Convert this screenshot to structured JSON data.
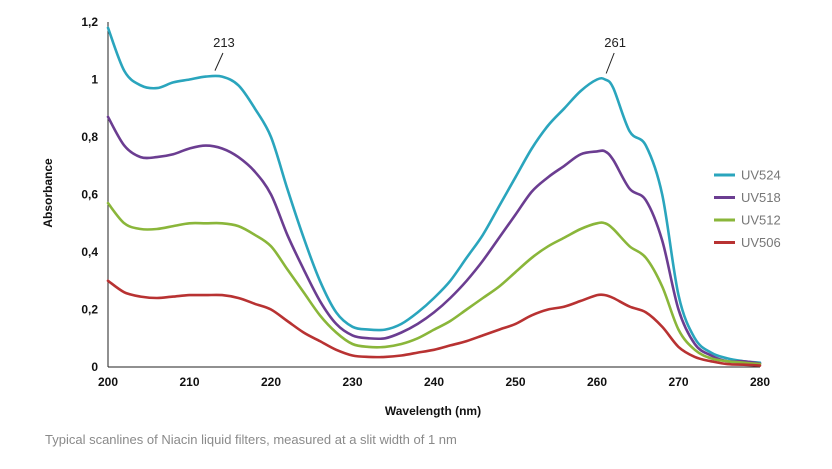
{
  "chart_data": {
    "type": "line",
    "xlabel": "Wavelength (nm)",
    "ylabel": "Absorbance",
    "xlim": [
      200,
      280
    ],
    "ylim": [
      0,
      1.2
    ],
    "x_ticks": [
      "200",
      "210",
      "220",
      "230",
      "240",
      "250",
      "260",
      "270",
      "280"
    ],
    "y_ticks": [
      "0",
      "0,2",
      "0,4",
      "0,6",
      "0,8",
      "1",
      "1,2"
    ],
    "grid": false,
    "legend_position": "right",
    "x": [
      200,
      202,
      204,
      206,
      208,
      210,
      212,
      214,
      216,
      218,
      220,
      222,
      224,
      226,
      228,
      230,
      232,
      234,
      236,
      238,
      240,
      242,
      244,
      246,
      248,
      250,
      252,
      254,
      256,
      258,
      260,
      261,
      262,
      264,
      266,
      268,
      270,
      272,
      274,
      276,
      278,
      280
    ],
    "series": [
      {
        "name": "UV524",
        "color": "#2aa5bd",
        "values": [
          1.18,
          1.03,
          0.98,
          0.97,
          0.99,
          1.0,
          1.01,
          1.01,
          0.98,
          0.9,
          0.8,
          0.62,
          0.45,
          0.3,
          0.19,
          0.14,
          0.13,
          0.13,
          0.15,
          0.19,
          0.24,
          0.3,
          0.38,
          0.46,
          0.56,
          0.66,
          0.76,
          0.84,
          0.9,
          0.96,
          1.0,
          1.0,
          0.97,
          0.82,
          0.77,
          0.6,
          0.25,
          0.1,
          0.05,
          0.03,
          0.02,
          0.015
        ]
      },
      {
        "name": "UV518",
        "color": "#6b3d91",
        "values": [
          0.87,
          0.77,
          0.73,
          0.73,
          0.74,
          0.76,
          0.77,
          0.76,
          0.73,
          0.68,
          0.6,
          0.46,
          0.34,
          0.23,
          0.15,
          0.11,
          0.1,
          0.1,
          0.12,
          0.15,
          0.19,
          0.24,
          0.3,
          0.37,
          0.45,
          0.53,
          0.61,
          0.66,
          0.7,
          0.74,
          0.75,
          0.75,
          0.72,
          0.62,
          0.58,
          0.44,
          0.2,
          0.08,
          0.04,
          0.02,
          0.02,
          0.012
        ]
      },
      {
        "name": "UV512",
        "color": "#8ab63a",
        "values": [
          0.57,
          0.5,
          0.48,
          0.48,
          0.49,
          0.5,
          0.5,
          0.5,
          0.49,
          0.46,
          0.42,
          0.34,
          0.26,
          0.18,
          0.12,
          0.08,
          0.07,
          0.07,
          0.08,
          0.1,
          0.13,
          0.16,
          0.2,
          0.24,
          0.28,
          0.33,
          0.38,
          0.42,
          0.45,
          0.48,
          0.5,
          0.5,
          0.48,
          0.42,
          0.38,
          0.28,
          0.13,
          0.06,
          0.03,
          0.02,
          0.015,
          0.01
        ]
      },
      {
        "name": "UV506",
        "color": "#b83232",
        "values": [
          0.3,
          0.26,
          0.245,
          0.24,
          0.245,
          0.25,
          0.25,
          0.25,
          0.24,
          0.22,
          0.2,
          0.16,
          0.12,
          0.09,
          0.06,
          0.04,
          0.035,
          0.035,
          0.04,
          0.05,
          0.06,
          0.075,
          0.09,
          0.11,
          0.13,
          0.15,
          0.18,
          0.2,
          0.21,
          0.23,
          0.25,
          0.25,
          0.24,
          0.21,
          0.19,
          0.14,
          0.07,
          0.035,
          0.02,
          0.01,
          0.008,
          0.005
        ]
      }
    ],
    "annotations": [
      {
        "text": "213",
        "x": 213,
        "y": 1.01
      },
      {
        "text": "261",
        "x": 261,
        "y": 1.0
      }
    ]
  },
  "caption": "Typical scanlines of Niacin liquid filters, measured at a slit width of 1 nm"
}
